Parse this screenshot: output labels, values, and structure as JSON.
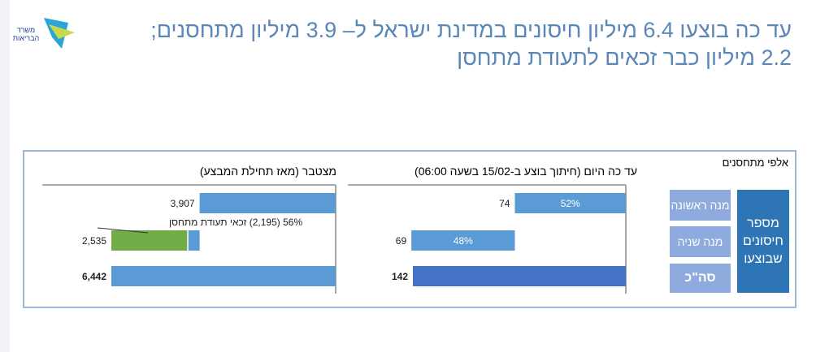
{
  "header": {
    "title_line1": "עד כה בוצעו 6.4 מיליון חיסונים במדינת ישראל ל– 3.9 מיליון מתחסנים;",
    "title_line2": "2.2 מיליון כבר זכאים לתעודת מתחסן",
    "logo_text": "משרד הבריאות"
  },
  "units_label": "אלפי מתחסנים",
  "legend": {
    "first": "מנה ראשונה",
    "second": "מנה שניה",
    "total": "סה\"כ",
    "group": "מספר חיסונים שבוצעו"
  },
  "colors": {
    "bar": "#5b9bd5",
    "total_today": "#4472c4",
    "eligible": "#70ad47",
    "legend_small": "#8faadc",
    "legend_big": "#2e75b6",
    "title": "#5a87b8"
  },
  "chart_data": [
    {
      "type": "bar",
      "title": "מצטבר (מאז תחילת המבצע)",
      "orientation": "horizontal-waterfall",
      "categories": [
        "מנה ראשונה",
        "מנה שניה",
        "סה\"כ"
      ],
      "values": [
        3907,
        2535,
        6442
      ],
      "labels": [
        "3,907",
        "2,535",
        "6,442"
      ],
      "eligible": {
        "value": 2195,
        "label": "56% (2,195) זכאי תעודת מתחסן"
      }
    },
    {
      "type": "bar",
      "title": "עד כה היום (חיתוך בוצע ב-15/02 בשעה 06:00)",
      "orientation": "horizontal-waterfall",
      "categories": [
        "מנה ראשונה",
        "מנה שניה",
        "סה\"כ"
      ],
      "values": [
        74,
        69,
        142
      ],
      "labels": [
        "74",
        "69",
        "142"
      ],
      "inner_labels": [
        "52%",
        "48%",
        ""
      ]
    }
  ]
}
